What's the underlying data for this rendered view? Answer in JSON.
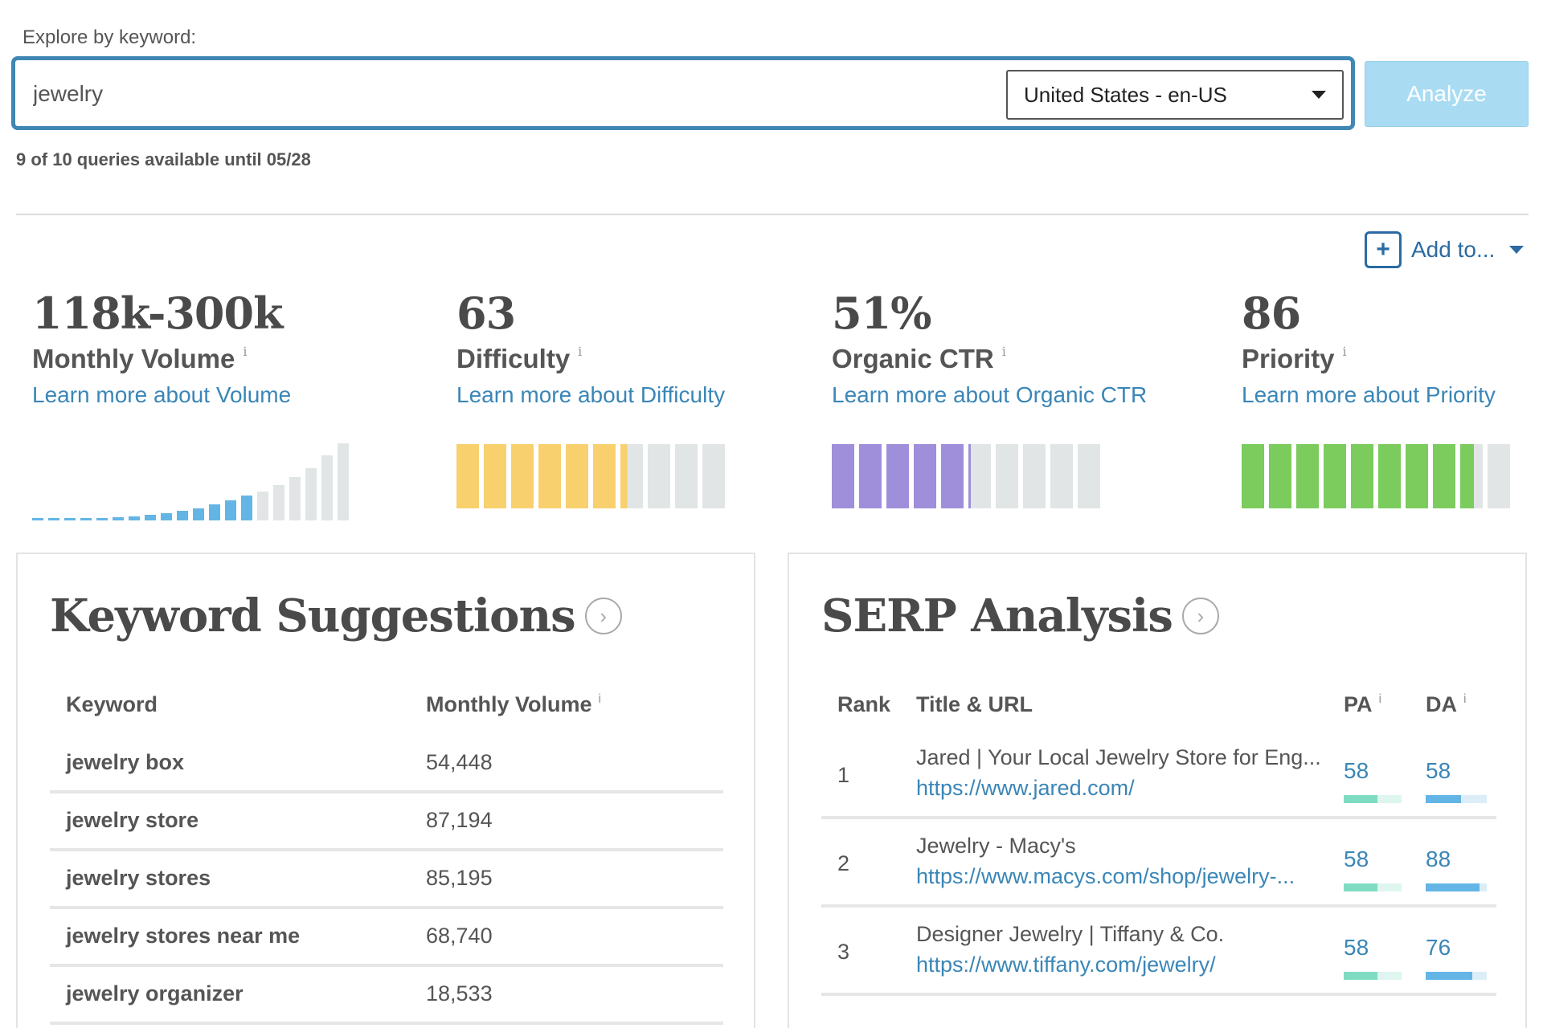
{
  "search": {
    "explore_label": "Explore by keyword:",
    "query": "jewelry",
    "locale": "United States - en-US",
    "analyze_label": "Analyze",
    "queries_note": "9 of 10 queries available until 05/28"
  },
  "toolbar": {
    "add_to_label": "Add to..."
  },
  "metrics": [
    {
      "value": "118k-300k",
      "label": "Monthly Volume",
      "info": "i",
      "learn": "Learn more about Volume"
    },
    {
      "value": "63",
      "label": "Difficulty",
      "info": "i",
      "learn": "Learn more about Difficulty",
      "score": 63,
      "color": "#f8d06e"
    },
    {
      "value": "51%",
      "label": "Organic CTR",
      "info": "i",
      "learn": "Learn more about Organic CTR",
      "score": 51,
      "color": "#9f8fdb"
    },
    {
      "value": "86",
      "label": "Priority",
      "info": "i",
      "learn": "Learn more about Priority",
      "score": 86,
      "color": "#7bcc5d"
    }
  ],
  "volume_chart": {
    "type": "bar",
    "filled_count": 14,
    "values": [
      1,
      1,
      1,
      2,
      3,
      4,
      5,
      7,
      9,
      12,
      16,
      21,
      26,
      32,
      38,
      46,
      56,
      68,
      84,
      100
    ],
    "active_color": "#63b5e6",
    "inactive_color": "#e1e5e6"
  },
  "keyword_suggestions": {
    "title": "Keyword Suggestions",
    "col_keyword": "Keyword",
    "col_volume": "Monthly Volume",
    "info": "i",
    "rows": [
      {
        "keyword": "jewelry box",
        "volume": "54,448"
      },
      {
        "keyword": "jewelry store",
        "volume": "87,194"
      },
      {
        "keyword": "jewelry stores",
        "volume": "85,195"
      },
      {
        "keyword": "jewelry stores near me",
        "volume": "68,740"
      },
      {
        "keyword": "jewelry organizer",
        "volume": "18,533"
      }
    ]
  },
  "serp_analysis": {
    "title": "SERP Analysis",
    "col_rank": "Rank",
    "col_title": "Title & URL",
    "col_pa": "PA",
    "col_da": "DA",
    "info": "i",
    "pa_color": "#7fdcc2",
    "da_color": "#63b5e6",
    "rows": [
      {
        "rank": "1",
        "title": "Jared | Your Local Jewelry Store for Eng...",
        "url": "https://www.jared.com/",
        "pa": "58",
        "da": "58",
        "pa_score": 58,
        "da_score": 58
      },
      {
        "rank": "2",
        "title": "Jewelry - Macy's",
        "url": "https://www.macys.com/shop/jewelry-...",
        "pa": "58",
        "da": "88",
        "pa_score": 58,
        "da_score": 88
      },
      {
        "rank": "3",
        "title": "Designer Jewelry | Tiffany & Co.",
        "url": "https://www.tiffany.com/jewelry/",
        "pa": "58",
        "da": "76",
        "pa_score": 58,
        "da_score": 76
      }
    ]
  }
}
